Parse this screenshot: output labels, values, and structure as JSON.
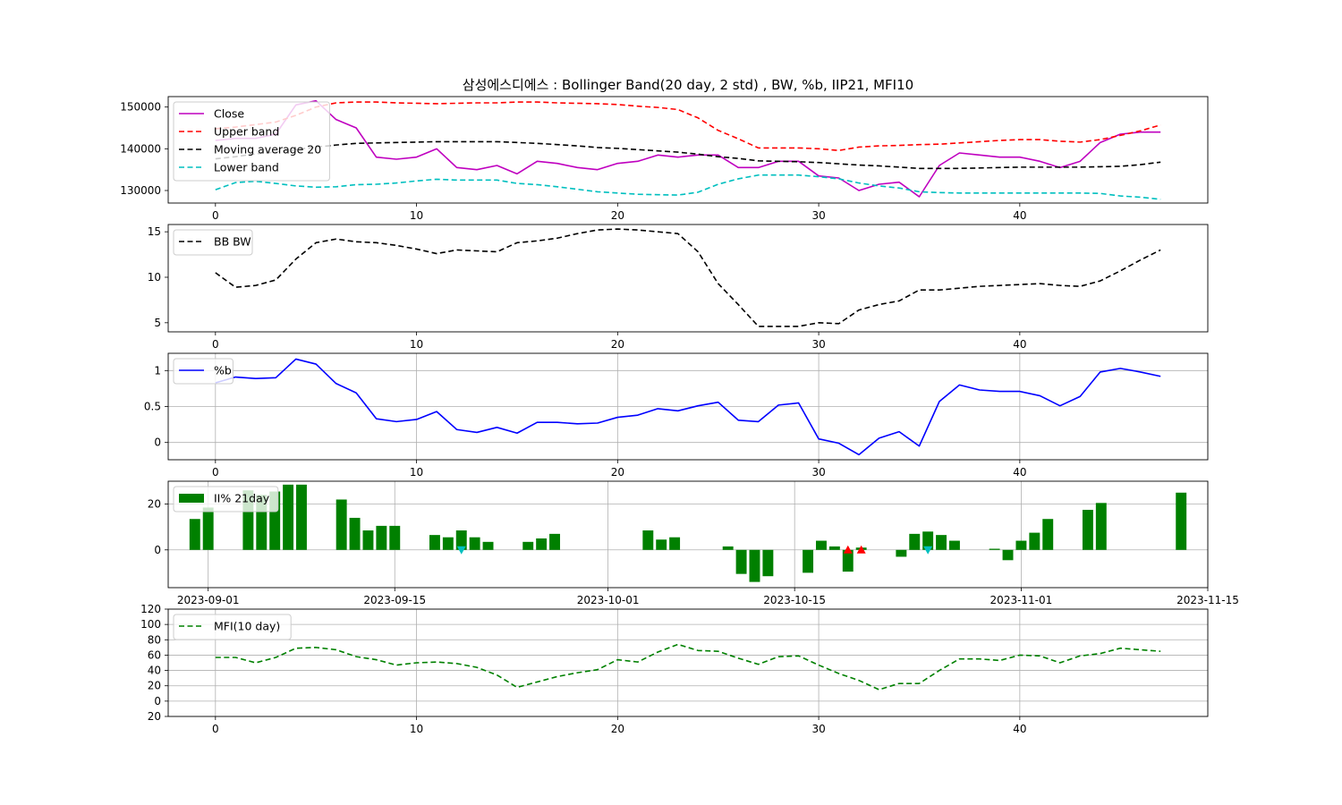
{
  "title": "삼성에스디에스 : Bollinger Band(20 day, 2 std) , BW, %b, IIP21, MFI10",
  "colors": {
    "close": "#bf00bf",
    "upper": "#ff0000",
    "ma": "#000000",
    "lower": "#00bfbf",
    "bw": "#000000",
    "pb": "#0000ff",
    "ii": "#008000",
    "mfi": "#008000",
    "buy_marker": "#ff0000",
    "sell_marker": "#00bfbf",
    "grid": "#b0b0b0"
  },
  "chart_data": [
    {
      "id": "bollinger",
      "type": "line",
      "title": "",
      "x": [
        0,
        1,
        2,
        3,
        4,
        5,
        6,
        7,
        8,
        9,
        10,
        11,
        12,
        13,
        14,
        15,
        16,
        17,
        18,
        19,
        20,
        21,
        22,
        23,
        24,
        25,
        26,
        27,
        28,
        29,
        30,
        31,
        32,
        33,
        34,
        35,
        36,
        37,
        38,
        39,
        40,
        41,
        42,
        43,
        44,
        45,
        46,
        47
      ],
      "xlim": [
        -2.35,
        49.35
      ],
      "ylim": [
        127000,
        152500
      ],
      "xticks": [
        0,
        10,
        20,
        30,
        40
      ],
      "yticks": [
        130000,
        140000,
        150000
      ],
      "grid": false,
      "legend": "top-left",
      "series": [
        {
          "name": "Close",
          "color_key": "close",
          "dash": "solid",
          "values": [
            142000,
            142500,
            142500,
            143500,
            150500,
            151500,
            147000,
            145000,
            138000,
            137500,
            138000,
            140000,
            135500,
            135000,
            136000,
            134000,
            137000,
            136500,
            135500,
            135000,
            136500,
            137000,
            138500,
            138000,
            138500,
            138500,
            135500,
            135500,
            137000,
            137000,
            133500,
            133000,
            130000,
            131500,
            132000,
            128500,
            136000,
            139000,
            138500,
            138000,
            138000,
            137000,
            135500,
            137000,
            141500,
            143500,
            144000,
            144000
          ]
        },
        {
          "name": "Upper band",
          "color_key": "upper",
          "dash": "dashed",
          "values": [
            144800,
            145200,
            145800,
            146400,
            148000,
            150000,
            151000,
            151200,
            151200,
            151000,
            150900,
            150800,
            150900,
            151000,
            151000,
            151200,
            151200,
            151000,
            150900,
            150800,
            150600,
            150200,
            149900,
            149400,
            147400,
            144400,
            142400,
            140200,
            140200,
            140200,
            140000,
            139600,
            140400,
            140700,
            140800,
            141000,
            141100,
            141400,
            141700,
            142000,
            142200,
            142200,
            141800,
            141600,
            142200,
            143200,
            144300,
            145700
          ]
        },
        {
          "name": "Moving average 20",
          "color_key": "ma",
          "dash": "dashed",
          "values": [
            137600,
            138100,
            138800,
            139200,
            139800,
            140400,
            140900,
            141300,
            141400,
            141500,
            141600,
            141700,
            141700,
            141700,
            141700,
            141500,
            141300,
            141000,
            140700,
            140300,
            140100,
            139800,
            139500,
            139200,
            138700,
            138100,
            137700,
            137100,
            137000,
            136900,
            136700,
            136400,
            136100,
            135900,
            135600,
            135300,
            135300,
            135300,
            135400,
            135500,
            135600,
            135600,
            135600,
            135600,
            135700,
            135800,
            136200,
            136800
          ]
        },
        {
          "name": "Lower band",
          "color_key": "lower",
          "dash": "dashed",
          "values": [
            130200,
            131900,
            132200,
            131700,
            131100,
            130800,
            130900,
            131400,
            131500,
            131800,
            132300,
            132700,
            132500,
            132500,
            132500,
            131700,
            131400,
            130900,
            130300,
            129700,
            129400,
            129100,
            129000,
            128900,
            129600,
            131500,
            132800,
            133700,
            133700,
            133700,
            133300,
            132800,
            131800,
            131100,
            130600,
            129700,
            129500,
            129400,
            129400,
            129400,
            129400,
            129400,
            129400,
            129400,
            129300,
            128700,
            128400,
            127900
          ]
        }
      ]
    },
    {
      "id": "bbw",
      "type": "line",
      "title": "",
      "x": [
        0,
        1,
        2,
        3,
        4,
        5,
        6,
        7,
        8,
        9,
        10,
        11,
        12,
        13,
        14,
        15,
        16,
        17,
        18,
        19,
        20,
        21,
        22,
        23,
        24,
        25,
        26,
        27,
        28,
        29,
        30,
        31,
        32,
        33,
        34,
        35,
        36,
        37,
        38,
        39,
        40,
        41,
        42,
        43,
        44,
        45,
        46,
        47
      ],
      "xlim": [
        -2.35,
        49.35
      ],
      "ylim": [
        4.0,
        15.8
      ],
      "xticks": [
        0,
        10,
        20,
        30,
        40
      ],
      "yticks": [
        5,
        10,
        15
      ],
      "grid": false,
      "legend": "top-left",
      "series": [
        {
          "name": "BB BW",
          "color_key": "bw",
          "dash": "dashed",
          "values": [
            10.5,
            8.9,
            9.1,
            9.7,
            12.0,
            13.8,
            14.2,
            13.9,
            13.8,
            13.5,
            13.1,
            12.6,
            13.0,
            12.9,
            12.8,
            13.8,
            14.0,
            14.3,
            14.8,
            15.2,
            15.3,
            15.2,
            15.0,
            14.8,
            12.8,
            9.3,
            7.0,
            4.6,
            4.6,
            4.6,
            5.0,
            4.9,
            6.4,
            7.0,
            7.4,
            8.6,
            8.6,
            8.8,
            9.0,
            9.1,
            9.2,
            9.3,
            9.1,
            9.0,
            9.6,
            10.7,
            11.9,
            13.0
          ]
        }
      ]
    },
    {
      "id": "percent_b",
      "type": "line",
      "title": "",
      "x": [
        0,
        1,
        2,
        3,
        4,
        5,
        6,
        7,
        8,
        9,
        10,
        11,
        12,
        13,
        14,
        15,
        16,
        17,
        18,
        19,
        20,
        21,
        22,
        23,
        24,
        25,
        26,
        27,
        28,
        29,
        30,
        31,
        32,
        33,
        34,
        35,
        36,
        37,
        38,
        39,
        40,
        41,
        42,
        43,
        44,
        45,
        46,
        47
      ],
      "xlim": [
        -2.35,
        49.35
      ],
      "ylim": [
        -0.24,
        1.24
      ],
      "xticks": [
        0,
        10,
        20,
        30,
        40
      ],
      "yticks": [
        0.0,
        0.5,
        1.0
      ],
      "grid": true,
      "legend": "top-left",
      "series": [
        {
          "name": "%b",
          "color_key": "pb",
          "dash": "solid",
          "values": [
            0.83,
            0.91,
            0.89,
            0.9,
            1.16,
            1.09,
            0.82,
            0.69,
            0.33,
            0.29,
            0.32,
            0.43,
            0.18,
            0.14,
            0.21,
            0.13,
            0.28,
            0.28,
            0.26,
            0.27,
            0.35,
            0.38,
            0.47,
            0.44,
            0.51,
            0.56,
            0.31,
            0.29,
            0.52,
            0.55,
            0.05,
            -0.01,
            -0.17,
            0.06,
            0.15,
            -0.05,
            0.57,
            0.8,
            0.73,
            0.71,
            0.71,
            0.65,
            0.51,
            0.64,
            0.98,
            1.03,
            0.98,
            0.92
          ]
        }
      ]
    },
    {
      "id": "ii_percent",
      "type": "bar",
      "title": "",
      "xlabel_format": "date",
      "xlim_dates": [
        "2023-08-29",
        "2023-11-15"
      ],
      "ylim": [
        -16.5,
        30
      ],
      "xticks": [
        "2023-09-01",
        "2023-09-15",
        "2023-10-01",
        "2023-10-15",
        "2023-11-01",
        "2023-11-15"
      ],
      "yticks": [
        0,
        20
      ],
      "grid": true,
      "legend": "top-left",
      "series": [
        {
          "name": "II% 21day",
          "color_key": "ii",
          "dates": [
            "2023-08-31",
            "2023-09-01",
            "2023-09-04",
            "2023-09-05",
            "2023-09-06",
            "2023-09-07",
            "2023-09-08",
            "2023-09-11",
            "2023-09-12",
            "2023-09-13",
            "2023-09-14",
            "2023-09-15",
            "2023-09-18",
            "2023-09-19",
            "2023-09-20",
            "2023-09-21",
            "2023-09-22",
            "2023-09-25",
            "2023-09-26",
            "2023-09-27",
            "2023-10-04",
            "2023-10-05",
            "2023-10-06",
            "2023-10-10",
            "2023-10-11",
            "2023-10-12",
            "2023-10-13",
            "2023-10-16",
            "2023-10-17",
            "2023-10-18",
            "2023-10-19",
            "2023-10-20",
            "2023-10-23",
            "2023-10-24",
            "2023-10-25",
            "2023-10-26",
            "2023-10-27",
            "2023-10-30",
            "2023-10-31",
            "2023-11-01",
            "2023-11-02",
            "2023-11-03",
            "2023-11-06",
            "2023-11-07",
            "2023-11-08",
            "2023-11-09",
            "2023-11-10",
            "2023-11-13"
          ],
          "values": [
            13.5,
            18.5,
            26.0,
            24.0,
            25.5,
            28.5,
            28.5,
            22.0,
            14.0,
            8.5,
            10.5,
            10.5,
            6.5,
            5.5,
            8.5,
            5.5,
            3.5,
            3.5,
            5.0,
            7.0,
            8.5,
            4.5,
            5.5,
            1.5,
            -10.5,
            -14.0,
            -11.5,
            -10.0,
            4.0,
            1.5,
            -9.5,
            1.0,
            -3.0,
            7.0,
            8.0,
            6.5,
            4.0,
            0.5,
            -4.5,
            4.0,
            7.5,
            13.5,
            17.5,
            20.5,
            0,
            0,
            0,
            25.0
          ]
        }
      ],
      "markers": [
        {
          "kind": "sell",
          "date": "2023-09-20",
          "value": 0,
          "shape": "triangle-down",
          "color_key": "sell_marker"
        },
        {
          "kind": "buy",
          "date": "2023-10-19",
          "value": 0,
          "shape": "triangle-up",
          "color_key": "buy_marker"
        },
        {
          "kind": "buy",
          "date": "2023-10-20",
          "value": 0,
          "shape": "triangle-up",
          "color_key": "buy_marker"
        },
        {
          "kind": "sell",
          "date": "2023-10-25",
          "value": 0,
          "shape": "triangle-down",
          "color_key": "sell_marker"
        }
      ]
    },
    {
      "id": "mfi",
      "type": "line",
      "title": "",
      "x": [
        0,
        1,
        2,
        3,
        4,
        5,
        6,
        7,
        8,
        9,
        10,
        11,
        12,
        13,
        14,
        15,
        16,
        17,
        18,
        19,
        20,
        21,
        22,
        23,
        24,
        25,
        26,
        27,
        28,
        29,
        30,
        31,
        32,
        33,
        34,
        35,
        36,
        37,
        38,
        39,
        40,
        41,
        42,
        43,
        44,
        45,
        46,
        47
      ],
      "xlim": [
        -2.35,
        49.35
      ],
      "ylim": [
        -20,
        120
      ],
      "xticks": [
        0,
        10,
        20,
        30,
        40
      ],
      "yticks": [
        -20,
        0,
        20,
        40,
        60,
        80,
        100,
        120
      ],
      "ytick_labels": [
        "\u001820",
        "0",
        "20",
        "40",
        "60",
        "80",
        "100",
        "120"
      ],
      "grid": true,
      "legend": "top-left",
      "series": [
        {
          "name": "MFI(10 day)",
          "color_key": "mfi",
          "dash": "dashed",
          "values": [
            57,
            57,
            50,
            57,
            69,
            70,
            67,
            58,
            54,
            47,
            50,
            51,
            49,
            44,
            34,
            18,
            25,
            32,
            37,
            41,
            54,
            51,
            64,
            74,
            66,
            65,
            56,
            48,
            58,
            59,
            47,
            36,
            27,
            15,
            23,
            23,
            40,
            55,
            55,
            53,
            60,
            59,
            50,
            59,
            62,
            69,
            67,
            65
          ]
        }
      ]
    }
  ]
}
